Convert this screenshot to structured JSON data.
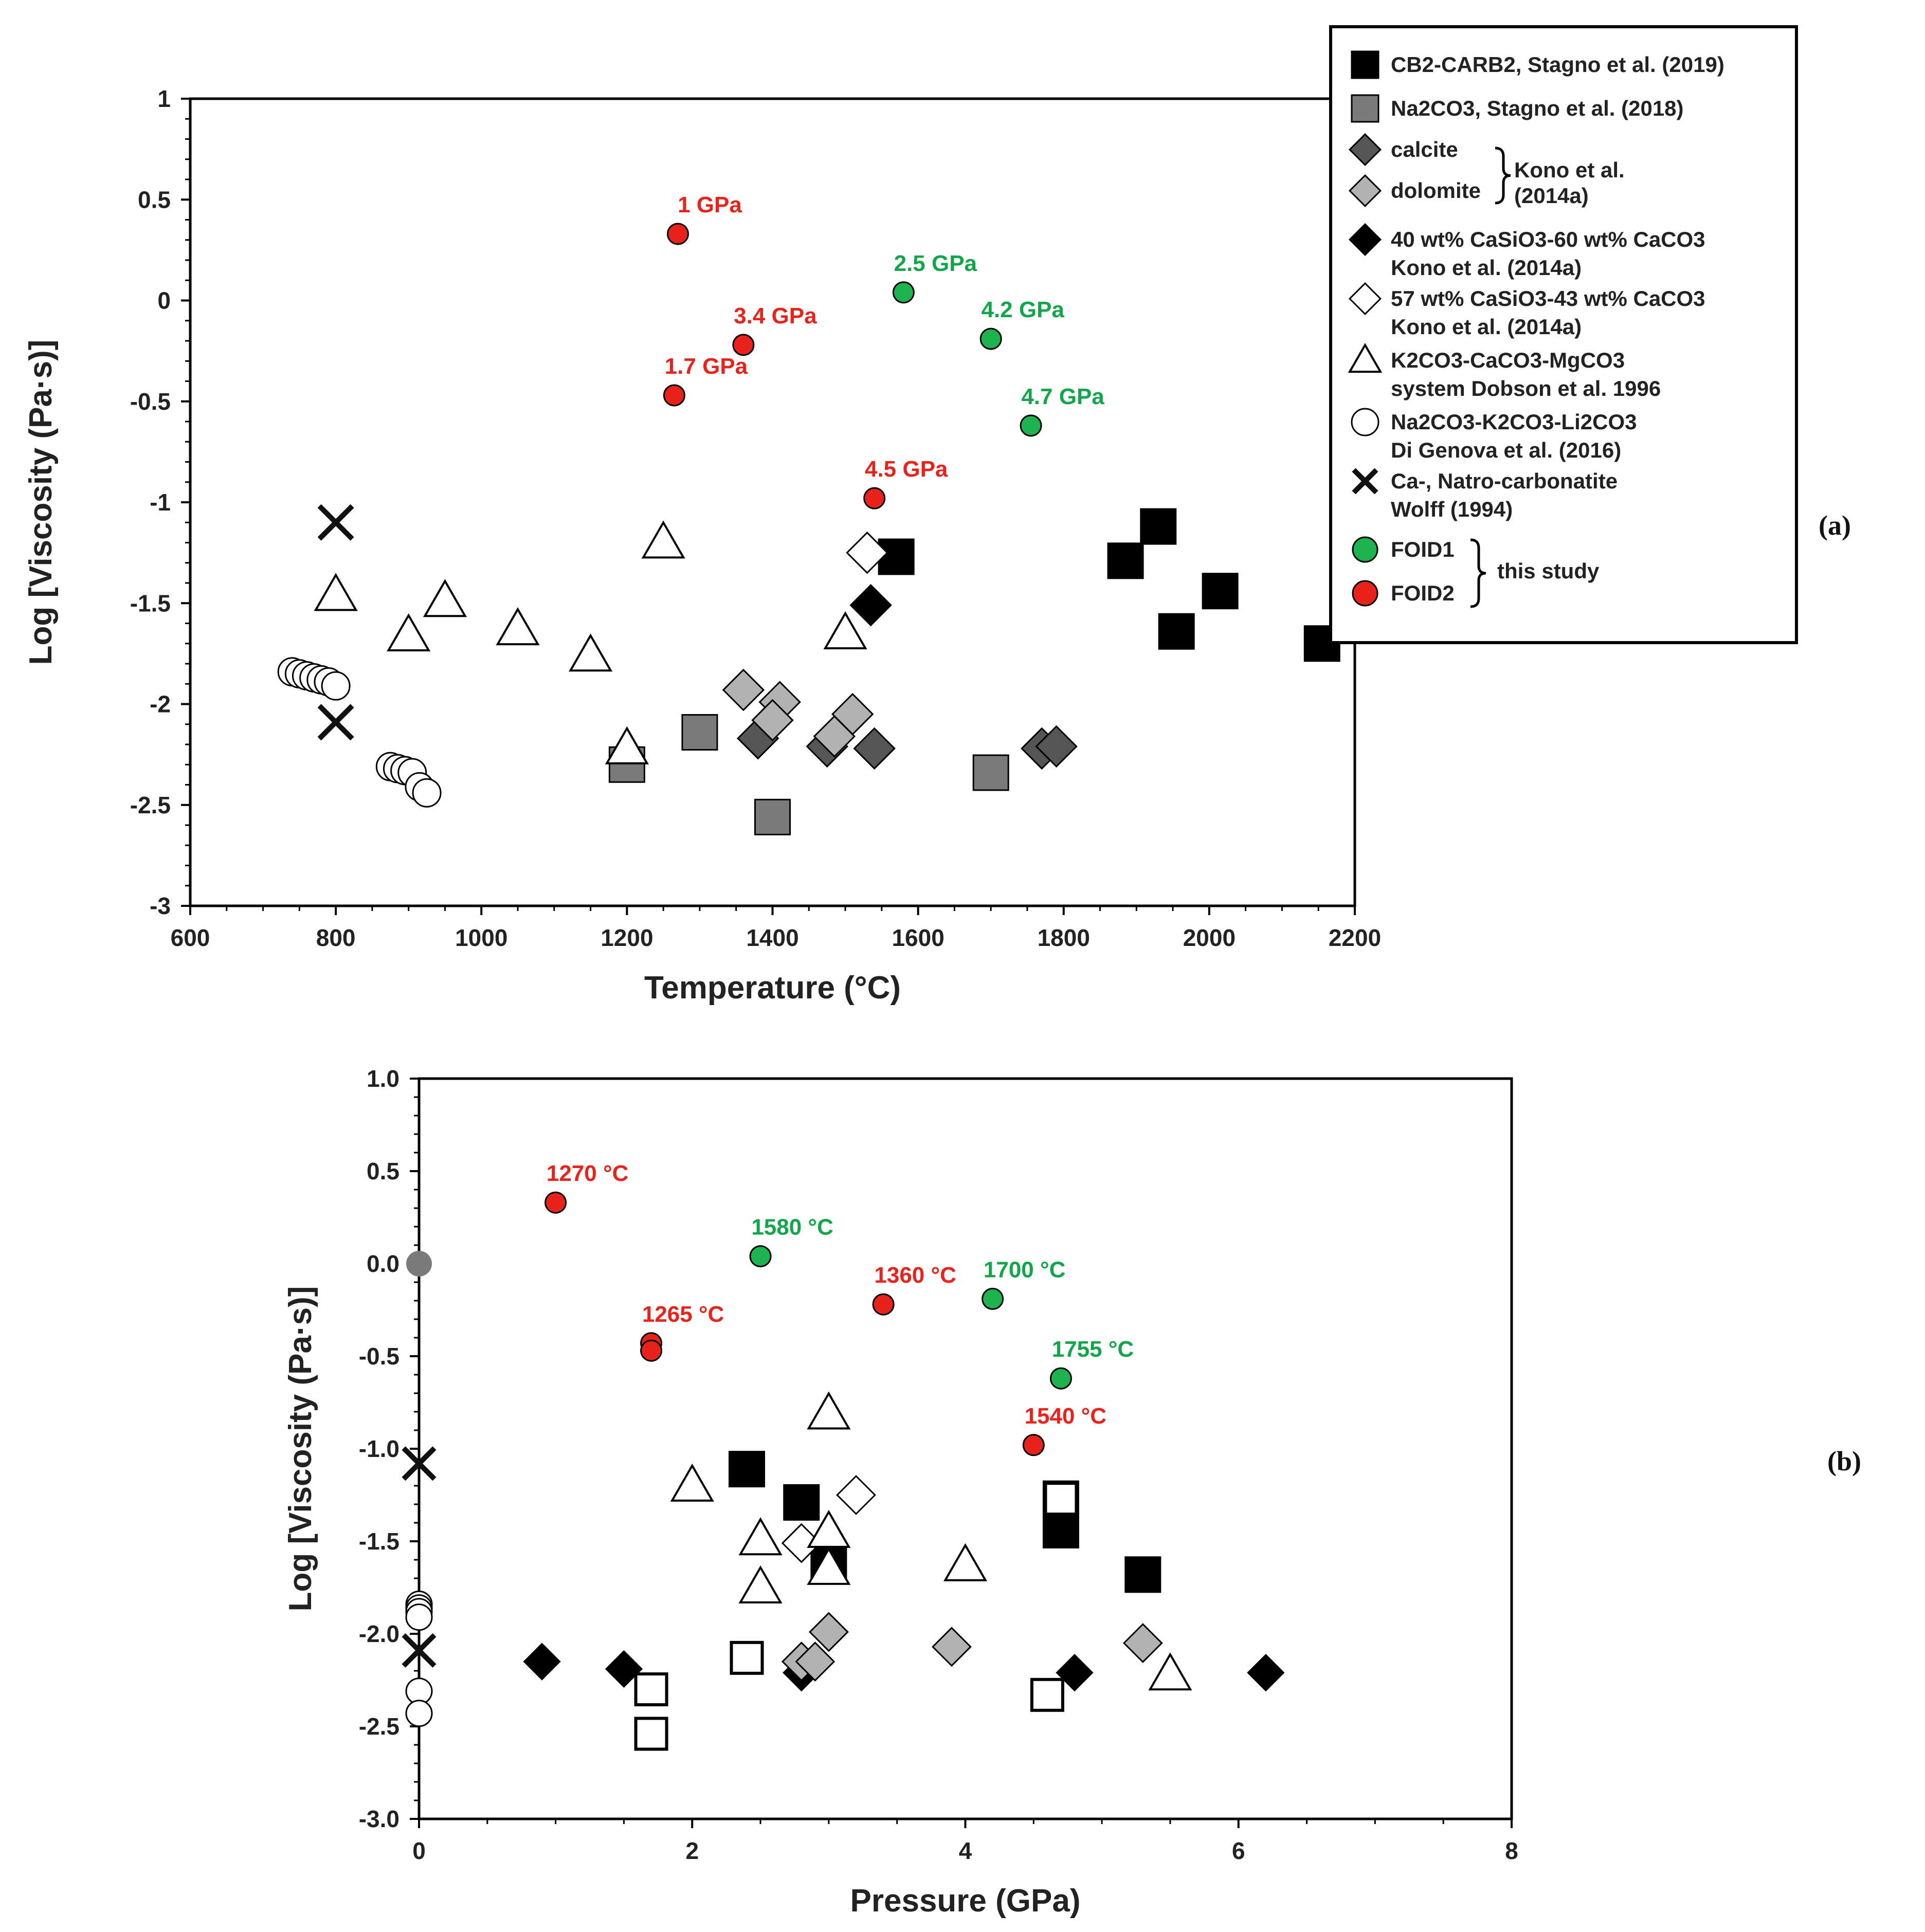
{
  "colors": {
    "red": "#e8231c",
    "green": "#1db34f",
    "black": "#000000",
    "darkgray": "#555555",
    "midgray": "#7a7a7a",
    "lightgray": "#b2b2b2",
    "annot_red": "#e8231c",
    "annot_green": "#12a54a"
  },
  "chart_data": [
    {
      "panel": "(a)",
      "type": "scatter",
      "title": "",
      "xlabel": "Temperature (°C)",
      "ylabel": "Log [Viscosity (Pa·s)]",
      "xlim": [
        600,
        2200
      ],
      "ylim": [
        -3,
        1
      ],
      "xticks": [
        "600",
        "800",
        "1000",
        "1200",
        "1400",
        "1600",
        "1800",
        "2000",
        "2200"
      ],
      "yticks": [
        "1",
        "0.5",
        "0",
        "-0.5",
        "-1",
        "-1.5",
        "-2",
        "-2.5",
        "-3"
      ],
      "legend_position": "top-right",
      "legend": [
        {
          "marker": "square",
          "color": "black",
          "label": "CB2-CARB2, Stagno et al. (2019)"
        },
        {
          "marker": "square",
          "color": "midgray",
          "label": "Na2CO3, Stagno et al. (2018)"
        },
        {
          "marker": "diamond",
          "color": "darkgray",
          "label": "calcite"
        },
        {
          "marker": "diamond",
          "color": "lightgray",
          "label": "dolomite"
        },
        {
          "marker": "brace",
          "label": "Kono et al. (2014a)"
        },
        {
          "marker": "diamond",
          "color": "black",
          "label": "40 wt% CaSiO3-60 wt% CaCO3 Kono et al. (2014a)"
        },
        {
          "marker": "diamond",
          "color": "white",
          "label": "57 wt% CaSiO3-43 wt% CaCO3 Kono et al. (2014a)"
        },
        {
          "marker": "triangle",
          "color": "white",
          "label": "K2CO3-CaCO3-MgCO3 system Dobson et al. 1996"
        },
        {
          "marker": "circle",
          "color": "white",
          "label": "Na2CO3-K2CO3-Li2CO3 Di Genova et al. (2016)"
        },
        {
          "marker": "x",
          "color": "black",
          "label": "Ca-, Natro-carbonatite Wolff (1994)"
        },
        {
          "marker": "dot",
          "color": "green",
          "label": "FOID1"
        },
        {
          "marker": "dot",
          "color": "red",
          "label": "FOID2"
        },
        {
          "marker": "brace",
          "label": "this study"
        }
      ],
      "series": [
        {
          "name": "CB2-CARB2, Stagno et al. (2019)",
          "marker": "square",
          "color": "black",
          "size": 34,
          "x": [
            1570,
            1885,
            1930,
            1955,
            2015,
            2155
          ],
          "y": [
            -1.27,
            -1.29,
            -1.12,
            -1.64,
            -1.44,
            -1.7
          ]
        },
        {
          "name": "Na2CO3, Stagno et al. (2018)",
          "marker": "square",
          "color": "midgray",
          "size": 34,
          "x": [
            1200,
            1300,
            1400,
            1700
          ],
          "y": [
            -2.3,
            -2.14,
            -2.56,
            -2.34
          ]
        },
        {
          "name": "calcite",
          "marker": "diamond",
          "color": "darkgray",
          "size": 34,
          "x": [
            1380,
            1475,
            1540,
            1770,
            1790
          ],
          "y": [
            -2.17,
            -2.21,
            -2.22,
            -2.22,
            -2.21
          ]
        },
        {
          "name": "dolomite",
          "marker": "diamond",
          "color": "lightgray",
          "size": 34,
          "x": [
            1360,
            1410,
            1400,
            1485,
            1510
          ],
          "y": [
            -1.93,
            -1.99,
            -2.08,
            -2.16,
            -2.05
          ]
        },
        {
          "name": "40 wt% CaSiO3-60 wt% CaCO3",
          "marker": "diamond",
          "color": "black",
          "size": 34,
          "x": [
            1535
          ],
          "y": [
            -1.51
          ]
        },
        {
          "name": "57 wt% CaSiO3-43 wt% CaCO3",
          "marker": "diamond",
          "color": "white",
          "size": 34,
          "x": [
            1530
          ],
          "y": [
            -1.25
          ]
        },
        {
          "name": "K2CO3-CaCO3-MgCO3 system Dobson et al. 1996",
          "marker": "triangle",
          "color": "white",
          "size": 34,
          "x": [
            800,
            900,
            950,
            1050,
            1150,
            1200,
            1250,
            1500
          ],
          "y": [
            -1.46,
            -1.66,
            -1.49,
            -1.63,
            -1.76,
            -2.22,
            -1.2,
            -1.65
          ]
        },
        {
          "name": "Na2CO3-K2CO3-Li2CO3 Di Genova et al. (2016)",
          "marker": "circle",
          "color": "white",
          "size": 27,
          "x": [
            740,
            750,
            760,
            770,
            780,
            790,
            800,
            875,
            885,
            895,
            905,
            915,
            925
          ],
          "y": [
            -1.84,
            -1.85,
            -1.86,
            -1.87,
            -1.88,
            -1.89,
            -1.91,
            -2.31,
            -2.32,
            -2.33,
            -2.34,
            -2.41,
            -2.44
          ]
        },
        {
          "name": "Ca-, Natro-carbonatite Wolff (1994)",
          "marker": "x",
          "color": "black",
          "size": 32,
          "x": [
            800,
            800
          ],
          "y": [
            -1.1,
            -2.09
          ]
        },
        {
          "name": "FOID1",
          "marker": "dot",
          "color": "green",
          "size": 20,
          "x": [
            1580,
            1700,
            1755
          ],
          "y": [
            0.04,
            -0.19,
            -0.62
          ]
        },
        {
          "name": "FOID2",
          "marker": "dot",
          "color": "red",
          "size": 20,
          "x": [
            1270,
            1360,
            1265,
            1540
          ],
          "y": [
            0.33,
            -0.22,
            -0.47,
            -0.98
          ]
        }
      ],
      "annotations": [
        {
          "text": "1 GPa",
          "color": "annot_red",
          "x": 1270,
          "y": 0.33
        },
        {
          "text": "3.4 GPa",
          "color": "annot_red",
          "x": 1360,
          "y": -0.22
        },
        {
          "text": "1.7 GPa",
          "color": "annot_red",
          "x": 1265,
          "y": -0.47
        },
        {
          "text": "4.5 GPa",
          "color": "annot_red",
          "x": 1540,
          "y": -0.98
        },
        {
          "text": "2.5 GPa",
          "color": "annot_green",
          "x": 1580,
          "y": 0.04
        },
        {
          "text": "4.2 GPa",
          "color": "annot_green",
          "x": 1700,
          "y": -0.19
        },
        {
          "text": "4.7 GPa",
          "color": "annot_green",
          "x": 1755,
          "y": -0.62
        }
      ]
    },
    {
      "panel": "(b)",
      "type": "scatter",
      "title": "",
      "xlabel": "Pressure (GPa)",
      "ylabel": "Log [Viscosity (Pa·s)]",
      "xlim": [
        0,
        8
      ],
      "ylim": [
        -3,
        1
      ],
      "xticks": [
        "0",
        "2",
        "4",
        "6",
        "8"
      ],
      "yticks": [
        "1.0",
        "0.5",
        "0.0",
        "-0.5",
        "-1.0",
        "-1.5",
        "-2.0",
        "-2.5",
        "-3.0"
      ],
      "series": [
        {
          "name": "filled squares",
          "marker": "square",
          "color": "black",
          "size": 34,
          "x": [
            2.4,
            2.8,
            3.0,
            4.7,
            4.7,
            5.3
          ],
          "y": [
            -1.11,
            -1.29,
            -1.62,
            -1.44,
            -1.27,
            -1.68
          ]
        },
        {
          "name": "open squares",
          "marker": "square",
          "color": "white",
          "size": 30,
          "x": [
            1.7,
            1.7,
            2.4,
            4.6,
            4.7
          ],
          "y": [
            -2.3,
            -2.54,
            -2.13,
            -2.33,
            -1.27
          ]
        },
        {
          "name": "black diamonds",
          "marker": "diamond",
          "color": "black",
          "size": 30,
          "x": [
            0.9,
            1.5,
            2.8,
            4.8,
            6.2
          ],
          "y": [
            -2.15,
            -2.19,
            -2.21,
            -2.21,
            -2.21
          ]
        },
        {
          "name": "gray diamonds",
          "marker": "diamond",
          "color": "lightgray",
          "size": 32,
          "x": [
            2.8,
            2.9,
            3.0,
            3.9,
            5.3
          ],
          "y": [
            -2.15,
            -2.15,
            -1.99,
            -2.07,
            -2.05
          ]
        },
        {
          "name": "open diamonds",
          "marker": "diamond",
          "color": "white",
          "size": 32,
          "x": [
            2.8,
            3.2
          ],
          "y": [
            -1.51,
            -1.25
          ]
        },
        {
          "name": "open triangles",
          "marker": "triangle",
          "color": "white",
          "size": 34,
          "x": [
            2.0,
            2.5,
            2.5,
            3.0,
            3.0,
            3.0,
            4.0,
            5.5
          ],
          "y": [
            -1.2,
            -1.49,
            -1.75,
            -0.81,
            -1.45,
            -1.65,
            -1.63,
            -2.22
          ]
        },
        {
          "name": "open circles",
          "marker": "circle",
          "color": "white",
          "size": 25,
          "x": [
            0,
            0,
            0,
            0,
            0,
            0
          ],
          "y": [
            -1.84,
            -1.86,
            -1.88,
            -1.91,
            -2.31,
            -2.43
          ]
        },
        {
          "name": "crosses",
          "marker": "x",
          "color": "black",
          "size": 30,
          "x": [
            0,
            0
          ],
          "y": [
            -1.08,
            -2.09
          ]
        },
        {
          "name": "gray dot",
          "marker": "dot",
          "color": "midgray",
          "size": 25,
          "x": [
            0
          ],
          "y": [
            0.0
          ]
        },
        {
          "name": "FOID1",
          "marker": "dot",
          "color": "green",
          "size": 20,
          "x": [
            2.5,
            4.2,
            4.7
          ],
          "y": [
            0.04,
            -0.19,
            -0.62
          ]
        },
        {
          "name": "FOID2",
          "marker": "dot",
          "color": "red",
          "size": 20,
          "x": [
            1.0,
            1.7,
            1.7,
            3.4,
            4.5
          ],
          "y": [
            0.33,
            -0.43,
            -0.47,
            -0.22,
            -0.98
          ]
        }
      ],
      "annotations": [
        {
          "text": "1270 °C",
          "color": "annot_red",
          "x": 1.0,
          "y": 0.33
        },
        {
          "text": "1265 °C",
          "color": "annot_red",
          "x": 1.7,
          "y": -0.43
        },
        {
          "text": "1360 °C",
          "color": "annot_red",
          "x": 3.4,
          "y": -0.22
        },
        {
          "text": "1540 °C",
          "color": "annot_red",
          "x": 4.5,
          "y": -0.98
        },
        {
          "text": "1580 °C",
          "color": "annot_green",
          "x": 2.5,
          "y": 0.04
        },
        {
          "text": "1700 °C",
          "color": "annot_green",
          "x": 4.2,
          "y": -0.19
        },
        {
          "text": "1755 °C",
          "color": "annot_green",
          "x": 4.7,
          "y": -0.62
        }
      ]
    }
  ]
}
